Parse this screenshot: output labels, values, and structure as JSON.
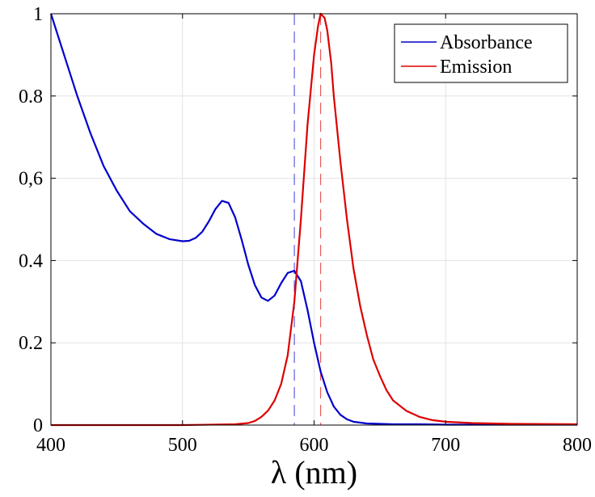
{
  "chart_data": {
    "type": "line",
    "title": "",
    "xlabel": "λ (nm)",
    "ylabel": "",
    "xlim": [
      400,
      800
    ],
    "ylim": [
      0,
      1
    ],
    "grid": true,
    "legend_position": "top-right",
    "xticks": [
      400,
      500,
      600,
      700,
      800
    ],
    "xtick_labels": [
      "400",
      "500",
      "600",
      "700",
      "800"
    ],
    "yticks": [
      0,
      0.2,
      0.4,
      0.6,
      0.8,
      1
    ],
    "ytick_labels": [
      "0",
      "0.2",
      "0.4",
      "0,6",
      "0.8",
      "1"
    ],
    "series": [
      {
        "name": "Absorbance",
        "color": "#0000cc",
        "x": [
          400,
          410,
          420,
          430,
          440,
          450,
          460,
          470,
          480,
          490,
          500,
          505,
          510,
          515,
          520,
          525,
          530,
          535,
          540,
          545,
          550,
          555,
          560,
          565,
          570,
          575,
          580,
          585,
          590,
          595,
          600,
          605,
          610,
          615,
          620,
          625,
          630,
          640,
          650,
          660,
          680,
          700,
          750,
          800
        ],
        "y": [
          1.0,
          0.9,
          0.8,
          0.71,
          0.63,
          0.57,
          0.52,
          0.49,
          0.465,
          0.452,
          0.447,
          0.448,
          0.455,
          0.47,
          0.495,
          0.525,
          0.545,
          0.54,
          0.505,
          0.45,
          0.39,
          0.34,
          0.31,
          0.302,
          0.315,
          0.345,
          0.37,
          0.375,
          0.35,
          0.28,
          0.2,
          0.13,
          0.08,
          0.045,
          0.025,
          0.014,
          0.008,
          0.004,
          0.003,
          0.002,
          0.002,
          0.001,
          0.001,
          0.001
        ]
      },
      {
        "name": "Emission",
        "color": "#dd0000",
        "x": [
          400,
          500,
          540,
          550,
          555,
          560,
          565,
          570,
          575,
          580,
          585,
          590,
          595,
          600,
          603,
          605,
          608,
          610,
          613,
          615,
          620,
          625,
          630,
          635,
          640,
          645,
          650,
          655,
          660,
          670,
          680,
          690,
          700,
          720,
          750,
          800
        ],
        "y": [
          0.0,
          0.0,
          0.002,
          0.005,
          0.01,
          0.02,
          0.035,
          0.06,
          0.1,
          0.17,
          0.3,
          0.5,
          0.73,
          0.9,
          0.97,
          1.0,
          0.99,
          0.96,
          0.88,
          0.8,
          0.64,
          0.5,
          0.38,
          0.29,
          0.22,
          0.16,
          0.12,
          0.085,
          0.06,
          0.035,
          0.02,
          0.012,
          0.008,
          0.005,
          0.003,
          0.002
        ]
      }
    ],
    "reference_lines": [
      {
        "x": 585,
        "color": "#0000cc"
      },
      {
        "x": 605,
        "color": "#dd0000"
      }
    ]
  }
}
